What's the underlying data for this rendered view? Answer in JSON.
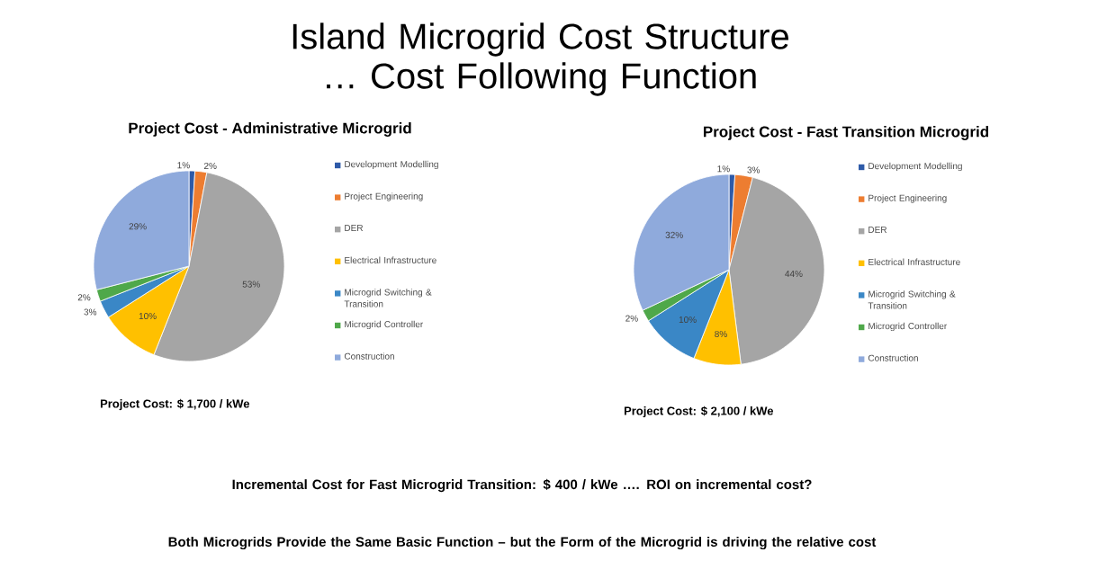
{
  "chart_data": [
    {
      "type": "pie",
      "title": "Project Cost - Administrative Microgrid",
      "categories": [
        "Development Modelling",
        "Project Engineering",
        "DER",
        "Electrical Infrastructure",
        "Microgrid Switching & Transition",
        "Microgrid Controller",
        "Construction"
      ],
      "values": [
        1,
        2,
        53,
        10,
        3,
        2,
        29
      ],
      "value_labels": [
        "1%",
        "2%",
        "53%",
        "10%",
        "3%",
        "2%",
        "29%"
      ],
      "colors": [
        "#2e5aa8",
        "#ed7d31",
        "#a5a5a5",
        "#ffc000",
        "#3a87c6",
        "#4fa84a",
        "#8faadc"
      ],
      "legend": "right",
      "annotations": [
        "Island Microgrid Cost Structure … Cost Following Function",
        "Project Cost: $ 1,700 / kWe"
      ]
    },
    {
      "type": "pie",
      "title": "Project Cost - Fast Transition Microgrid",
      "categories": [
        "Development Modelling",
        "Project Engineering",
        "DER",
        "Electrical Infrastructure",
        "Microgrid Switching & Transition",
        "Microgrid Controller",
        "Construction"
      ],
      "values": [
        1,
        3,
        44,
        8,
        10,
        2,
        32
      ],
      "value_labels": [
        "1%",
        "3%",
        "44%",
        "8%",
        "10%",
        "2%",
        "32%"
      ],
      "colors": [
        "#2e5aa8",
        "#ed7d31",
        "#a5a5a5",
        "#ffc000",
        "#3a87c6",
        "#4fa84a",
        "#8faadc"
      ],
      "legend": "right",
      "annotations": [
        "Project Cost: $ 2,100 / kWe",
        "Incremental Cost for Fast Microgrid Transition: $ 400 / kWe …. ROI on incremental cost?",
        "Both Microgrids Provide the Same Basic Function – but the Form of the Microgrid is driving the relative cost"
      ]
    }
  ]
}
